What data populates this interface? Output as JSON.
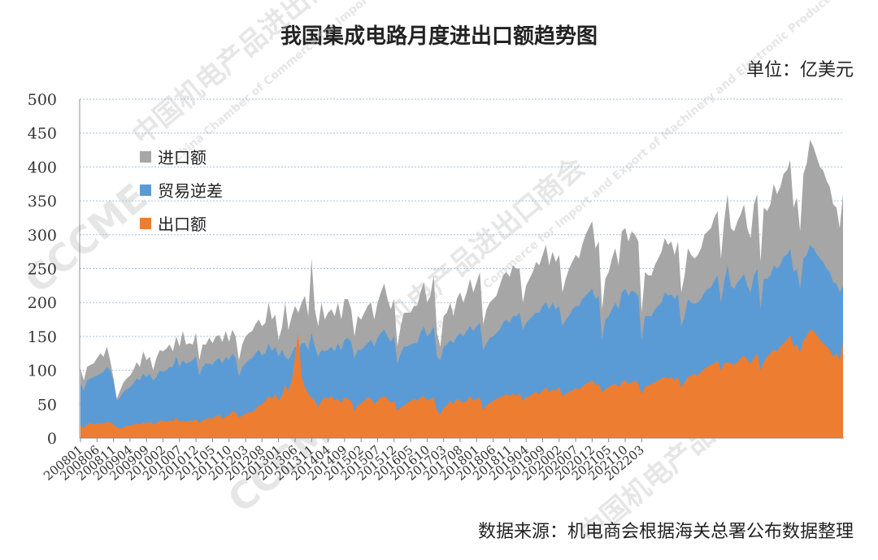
{
  "header": {
    "title": "我国集成电路月度进出口额趋势图",
    "unit": "单位：亿美元"
  },
  "footer": {
    "source": "数据来源：机电商会根据海关总署公布数据整理"
  },
  "watermark": {
    "text": "中国机电产品进出口商会",
    "text_en": "China Chamber of Commerce for Import and Export of Machinery and Electronic Products",
    "logo": "CCCME"
  },
  "colors": {
    "import": "#a6a6a6",
    "surplus": "#5b9bd5",
    "export": "#ed7d31",
    "grid": "#9dc3e6"
  },
  "chart_data": {
    "type": "area",
    "title": "我国集成电路月度进出口额趋势图",
    "ylabel": "",
    "ylim": [
      0,
      500
    ],
    "yticks": [
      0,
      50,
      100,
      150,
      200,
      250,
      300,
      350,
      400,
      450,
      500
    ],
    "x_start": "200801",
    "x_end": "202206",
    "tick_labels": [
      "200801",
      "200806",
      "200811",
      "200904",
      "200909",
      "201002",
      "201007",
      "201012",
      "201105",
      "201110",
      "201203",
      "201208",
      "201301",
      "201306",
      "201311",
      "201404",
      "201409",
      "201502",
      "201507",
      "201512",
      "201605",
      "201610",
      "201703",
      "201708",
      "201801",
      "201806",
      "201811",
      "201904",
      "201909",
      "202002",
      "202007",
      "202012",
      "202105",
      "202110",
      "202203"
    ],
    "legend": [
      "进口额",
      "贸易逆差",
      "出口额"
    ],
    "legend_position": "upper-left",
    "grid": true,
    "series": [
      {
        "name": "进口额",
        "values": [
          102,
          85,
          105,
          108,
          110,
          118,
          125,
          120,
          135,
          115,
          88,
          58,
          70,
          82,
          88,
          92,
          100,
          112,
          105,
          128,
          115,
          120,
          100,
          118,
          130,
          128,
          132,
          138,
          128,
          150,
          135,
          158,
          138,
          140,
          138,
          155,
          115,
          138,
          138,
          148,
          140,
          150,
          152,
          142,
          158,
          142,
          160,
          150,
          115,
          138,
          150,
          155,
          158,
          168,
          175,
          165,
          170,
          200,
          175,
          182,
          145,
          162,
          200,
          160,
          180,
          195,
          185,
          200,
          210,
          180,
          265,
          190,
          165,
          200,
          175,
          185,
          190,
          180,
          200,
          175,
          205,
          205,
          190,
          150,
          180,
          175,
          185,
          195,
          200,
          175,
          200,
          215,
          228,
          205,
          190,
          205,
          135,
          165,
          185,
          185,
          185,
          195,
          195,
          215,
          230,
          200,
          210,
          240,
          155,
          135,
          180,
          185,
          200,
          180,
          205,
          215,
          200,
          215,
          235,
          215,
          230,
          245,
          168,
          190,
          200,
          205,
          210,
          225,
          240,
          245,
          238,
          255,
          250,
          250,
          200,
          225,
          235,
          245,
          260,
          255,
          270,
          285,
          255,
          275,
          260,
          270,
          215,
          235,
          250,
          260,
          270,
          265,
          285,
          300,
          310,
          320,
          280,
          290,
          190,
          235,
          245,
          265,
          280,
          255,
          305,
          310,
          290,
          305,
          300,
          290,
          185,
          245,
          240,
          240,
          255,
          265,
          275,
          295,
          285,
          290,
          270,
          290,
          215,
          240,
          280,
          270,
          265,
          270,
          280,
          300,
          305,
          310,
          325,
          335,
          265,
          320,
          360,
          310,
          305,
          320,
          330,
          345,
          310,
          295,
          345,
          360,
          260,
          340,
          335,
          345,
          375,
          360,
          370,
          390,
          395,
          410,
          340,
          355,
          305,
          390,
          405,
          440,
          430,
          415,
          400,
          395,
          380,
          370,
          345,
          340,
          310,
          360
        ]
      },
      {
        "name": "贸易逆差",
        "values": [
          80,
          70,
          85,
          88,
          90,
          92,
          95,
          98,
          105,
          100,
          85,
          55,
          60,
          68,
          72,
          75,
          80,
          88,
          85,
          95,
          90,
          95,
          85,
          90,
          100,
          98,
          100,
          105,
          105,
          120,
          105,
          115,
          110,
          112,
          115,
          120,
          92,
          105,
          110,
          110,
          108,
          115,
          118,
          110,
          120,
          115,
          125,
          118,
          90,
          105,
          110,
          115,
          118,
          125,
          130,
          122,
          125,
          140,
          128,
          135,
          120,
          130,
          120,
          115,
          125,
          135,
          130,
          140,
          140,
          130,
          155,
          135,
          120,
          130,
          128,
          130,
          135,
          128,
          140,
          130,
          145,
          148,
          142,
          118,
          130,
          130,
          135,
          140,
          145,
          135,
          148,
          155,
          160,
          150,
          142,
          150,
          110,
          125,
          135,
          135,
          138,
          140,
          140,
          155,
          165,
          150,
          155,
          165,
          120,
          115,
          135,
          138,
          145,
          140,
          150,
          155,
          150,
          158,
          165,
          158,
          165,
          170,
          130,
          140,
          148,
          150,
          155,
          160,
          170,
          175,
          170,
          180,
          180,
          185,
          160,
          170,
          175,
          180,
          185,
          185,
          195,
          200,
          190,
          200,
          190,
          195,
          165,
          175,
          180,
          190,
          195,
          195,
          205,
          210,
          215,
          220,
          205,
          210,
          145,
          175,
          180,
          190,
          200,
          190,
          215,
          220,
          210,
          218,
          215,
          210,
          145,
          180,
          180,
          180,
          190,
          195,
          200,
          215,
          210,
          212,
          205,
          212,
          165,
          180,
          205,
          200,
          198,
          200,
          205,
          215,
          220,
          222,
          232,
          240,
          200,
          230,
          255,
          225,
          220,
          230,
          235,
          242,
          225,
          215,
          240,
          250,
          190,
          235,
          235,
          240,
          255,
          250,
          255,
          268,
          270,
          280,
          245,
          250,
          220,
          265,
          270,
          285,
          280,
          272,
          265,
          260,
          250,
          245,
          230,
          228,
          215,
          225
        ]
      },
      {
        "name": "出口额",
        "values": [
          18,
          15,
          20,
          22,
          20,
          21,
          22,
          22,
          24,
          23,
          20,
          16,
          14,
          16,
          18,
          19,
          20,
          21,
          20,
          23,
          22,
          24,
          21,
          22,
          26,
          25,
          24,
          26,
          25,
          30,
          24,
          26,
          24,
          26,
          25,
          28,
          22,
          26,
          28,
          30,
          28,
          32,
          35,
          28,
          32,
          33,
          40,
          38,
          30,
          33,
          36,
          38,
          38,
          42,
          48,
          50,
          55,
          62,
          58,
          65,
          55,
          62,
          78,
          70,
          85,
          120,
          155,
          90,
          75,
          65,
          60,
          55,
          45,
          55,
          60,
          58,
          62,
          55,
          58,
          52,
          60,
          58,
          55,
          40,
          48,
          52,
          55,
          60,
          58,
          50,
          55,
          60,
          62,
          58,
          52,
          55,
          40,
          45,
          48,
          52,
          55,
          58,
          55,
          60,
          62,
          55,
          58,
          60,
          40,
          35,
          45,
          48,
          55,
          50,
          58,
          55,
          52,
          55,
          62,
          55,
          58,
          60,
          40,
          48,
          52,
          55,
          58,
          60,
          62,
          65,
          62,
          65,
          63,
          66,
          55,
          60,
          62,
          65,
          68,
          65,
          70,
          75,
          68,
          72,
          70,
          75,
          62,
          65,
          68,
          70,
          74,
          72,
          75,
          80,
          82,
          85,
          78,
          80,
          68,
          72,
          75,
          78,
          80,
          75,
          82,
          85,
          80,
          82,
          85,
          80,
          65,
          75,
          78,
          80,
          82,
          85,
          88,
          90,
          88,
          90,
          85,
          90,
          75,
          82,
          90,
          92,
          95,
          92,
          98,
          102,
          105,
          108,
          110,
          115,
          100,
          110,
          112,
          110,
          108,
          112,
          118,
          122,
          115,
          110,
          118,
          125,
          100,
          112,
          120,
          125,
          130,
          128,
          135,
          140,
          145,
          152,
          135,
          138,
          125,
          145,
          150,
          160,
          158,
          152,
          145,
          140,
          135,
          130,
          120,
          125,
          115,
          140
        ]
      }
    ]
  }
}
